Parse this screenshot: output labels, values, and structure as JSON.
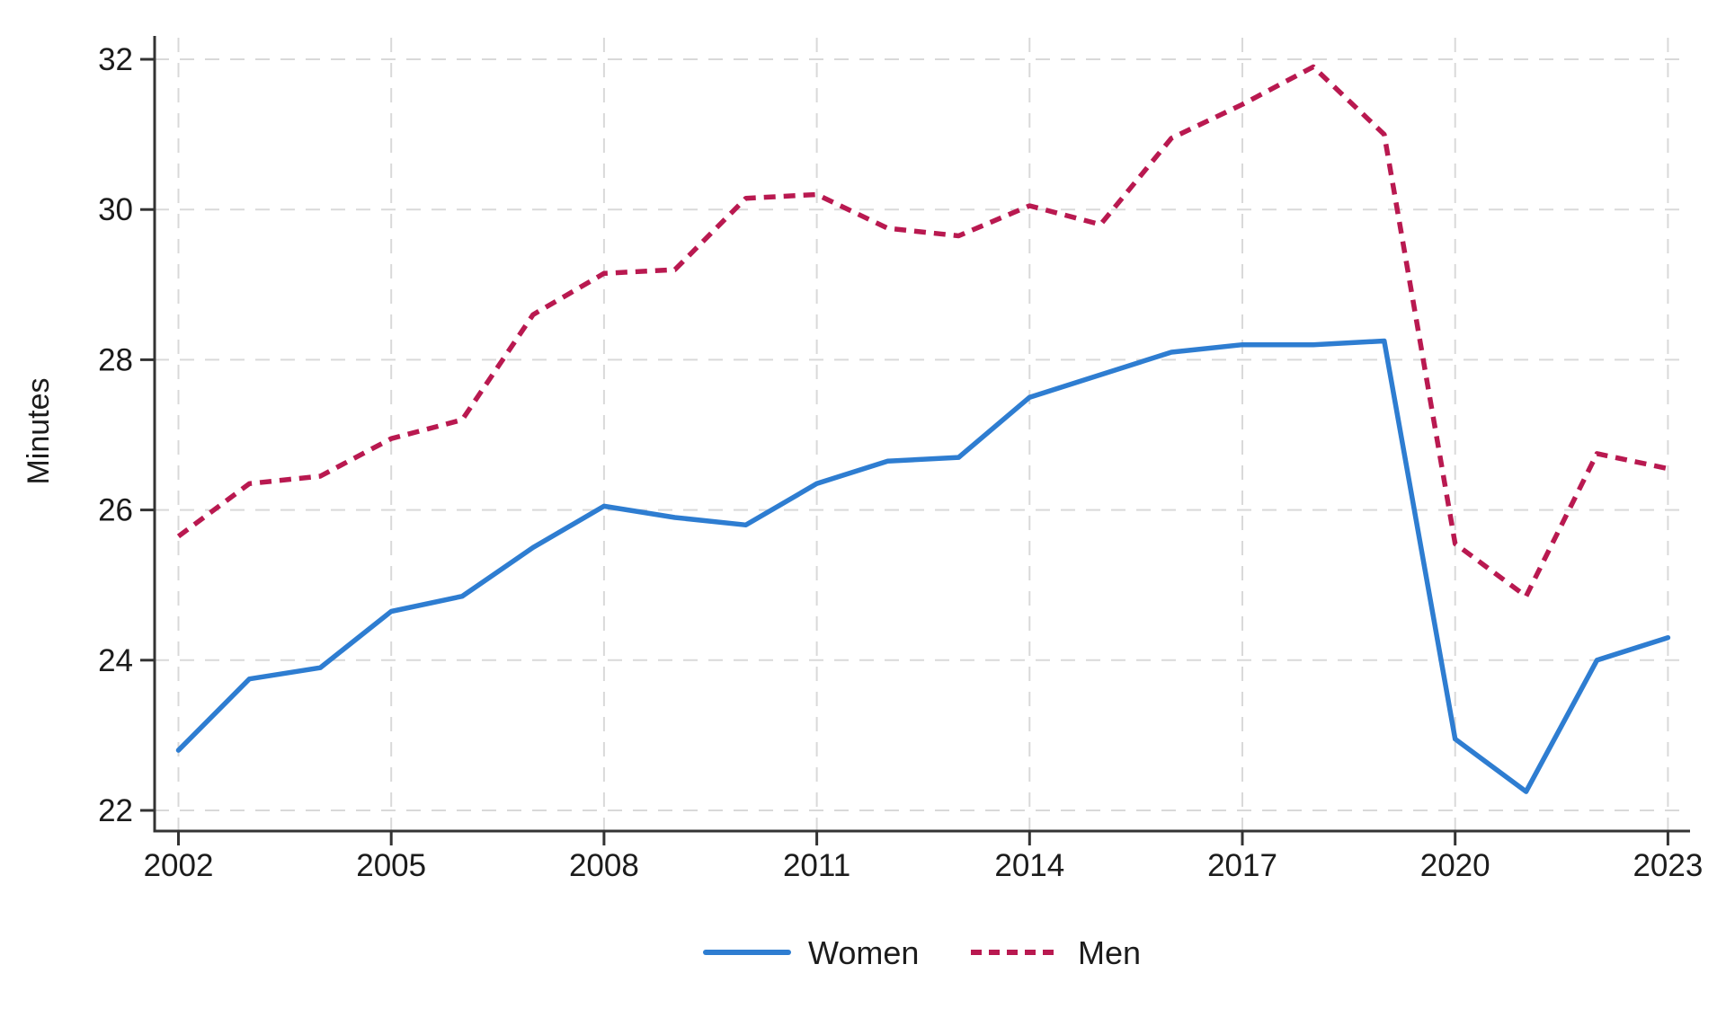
{
  "chart_data": {
    "type": "line",
    "title": "",
    "xlabel": "",
    "ylabel": "Minutes",
    "x": [
      2002,
      2003,
      2004,
      2005,
      2006,
      2007,
      2008,
      2009,
      2010,
      2011,
      2012,
      2013,
      2014,
      2015,
      2016,
      2017,
      2018,
      2019,
      2020,
      2021,
      2022,
      2023
    ],
    "series": [
      {
        "name": "Women",
        "style": "solid",
        "color": "#2e7dd1",
        "values": [
          22.8,
          23.75,
          23.9,
          24.65,
          24.85,
          25.5,
          26.05,
          25.9,
          25.8,
          26.35,
          26.65,
          26.7,
          27.5,
          27.8,
          28.1,
          28.2,
          28.2,
          28.25,
          22.95,
          22.25,
          24.0,
          24.3
        ]
      },
      {
        "name": "Men",
        "style": "dashed",
        "color": "#b91950",
        "values": [
          25.65,
          26.35,
          26.45,
          26.95,
          27.2,
          28.6,
          29.15,
          29.2,
          30.15,
          30.2,
          29.75,
          29.65,
          30.05,
          29.8,
          30.95,
          31.4,
          31.9,
          31.0,
          25.55,
          24.85,
          26.75,
          26.55
        ]
      }
    ],
    "x_ticks": [
      2002,
      2005,
      2008,
      2011,
      2014,
      2017,
      2020,
      2023
    ],
    "y_ticks": [
      22,
      24,
      26,
      28,
      30,
      32
    ],
    "ylim": [
      22,
      32
    ],
    "xlim": [
      2002,
      2023
    ],
    "grid": "both-dashed",
    "legend_position": "bottom-center",
    "colors": {
      "grid": "#d9d9d9",
      "axis": "#333333",
      "text": "#1c1c1c",
      "background": "#ffffff"
    }
  }
}
